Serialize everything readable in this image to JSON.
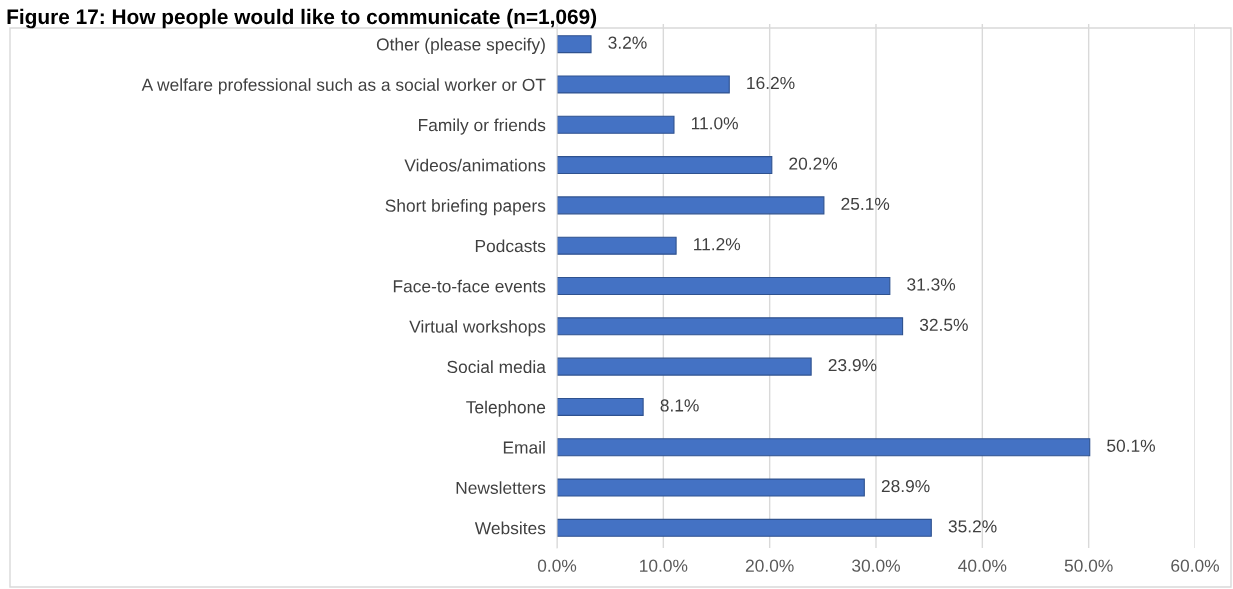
{
  "chart_data": {
    "type": "bar",
    "orientation": "horizontal",
    "title": "Figure 17: How people would like to communicate (n=1,069)",
    "categories": [
      "Other (please specify)",
      "A welfare professional such as a social worker or OT",
      "Family or friends",
      "Videos/animations",
      "Short briefing papers",
      "Podcasts",
      "Face-to-face events",
      "Virtual workshops",
      "Social media",
      "Telephone",
      "Email",
      "Newsletters",
      "Websites"
    ],
    "values": [
      3.2,
      16.2,
      11.0,
      20.2,
      25.1,
      11.2,
      31.3,
      32.5,
      23.9,
      8.1,
      50.1,
      28.9,
      35.2
    ],
    "value_labels": [
      "3.2%",
      "16.2%",
      "11.0%",
      "20.2%",
      "25.1%",
      "11.2%",
      "31.3%",
      "32.5%",
      "23.9%",
      "8.1%",
      "50.1%",
      "28.9%",
      "35.2%"
    ],
    "color": "#4472c4",
    "xlim": [
      0,
      60
    ],
    "xticks": [
      {
        "value": 0,
        "label": "0.0%"
      },
      {
        "value": 10,
        "label": "10.0%"
      },
      {
        "value": 20,
        "label": "20.0%"
      },
      {
        "value": 30,
        "label": "30.0%"
      },
      {
        "value": 40,
        "label": "40.0%"
      },
      {
        "value": 50,
        "label": "50.0%"
      },
      {
        "value": 60,
        "label": "60.0%"
      }
    ],
    "grid": "x",
    "legend": false
  }
}
